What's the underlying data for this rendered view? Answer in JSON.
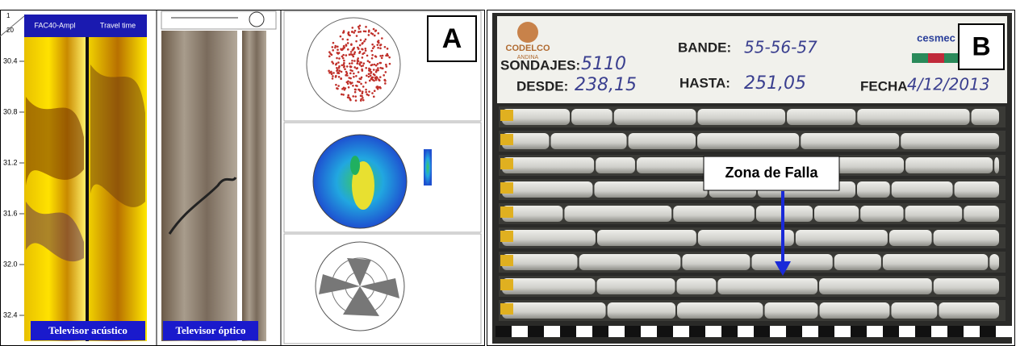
{
  "panel_a": {
    "label": "A",
    "acoustic": {
      "corner_top": "1",
      "corner_bottom": "20",
      "track_1": "FAC40-Ampl",
      "track_2": "Travel time",
      "depths": [
        "30.4",
        "30.8",
        "31.2",
        "31.6",
        "32.0",
        "32.4"
      ],
      "caption": "Televisor acústico"
    },
    "optical": {
      "caption": "Televisor óptico"
    }
  },
  "panel_b": {
    "label": "B",
    "annotation": "Zona de Falla",
    "header": {
      "company": "CODELCO",
      "division": "ANDINA",
      "logo": "cesmec",
      "sondajes_label": "SONDAJES:",
      "sondajes": "5110",
      "desde_label": "DESDE:",
      "desde": "238,15",
      "bande_label": "BANDE:",
      "bande": "55-56-57",
      "hasta_label": "HASTA:",
      "hasta": "251,05",
      "fecha_label": "FECHA",
      "fecha": "4/12/2013"
    }
  }
}
